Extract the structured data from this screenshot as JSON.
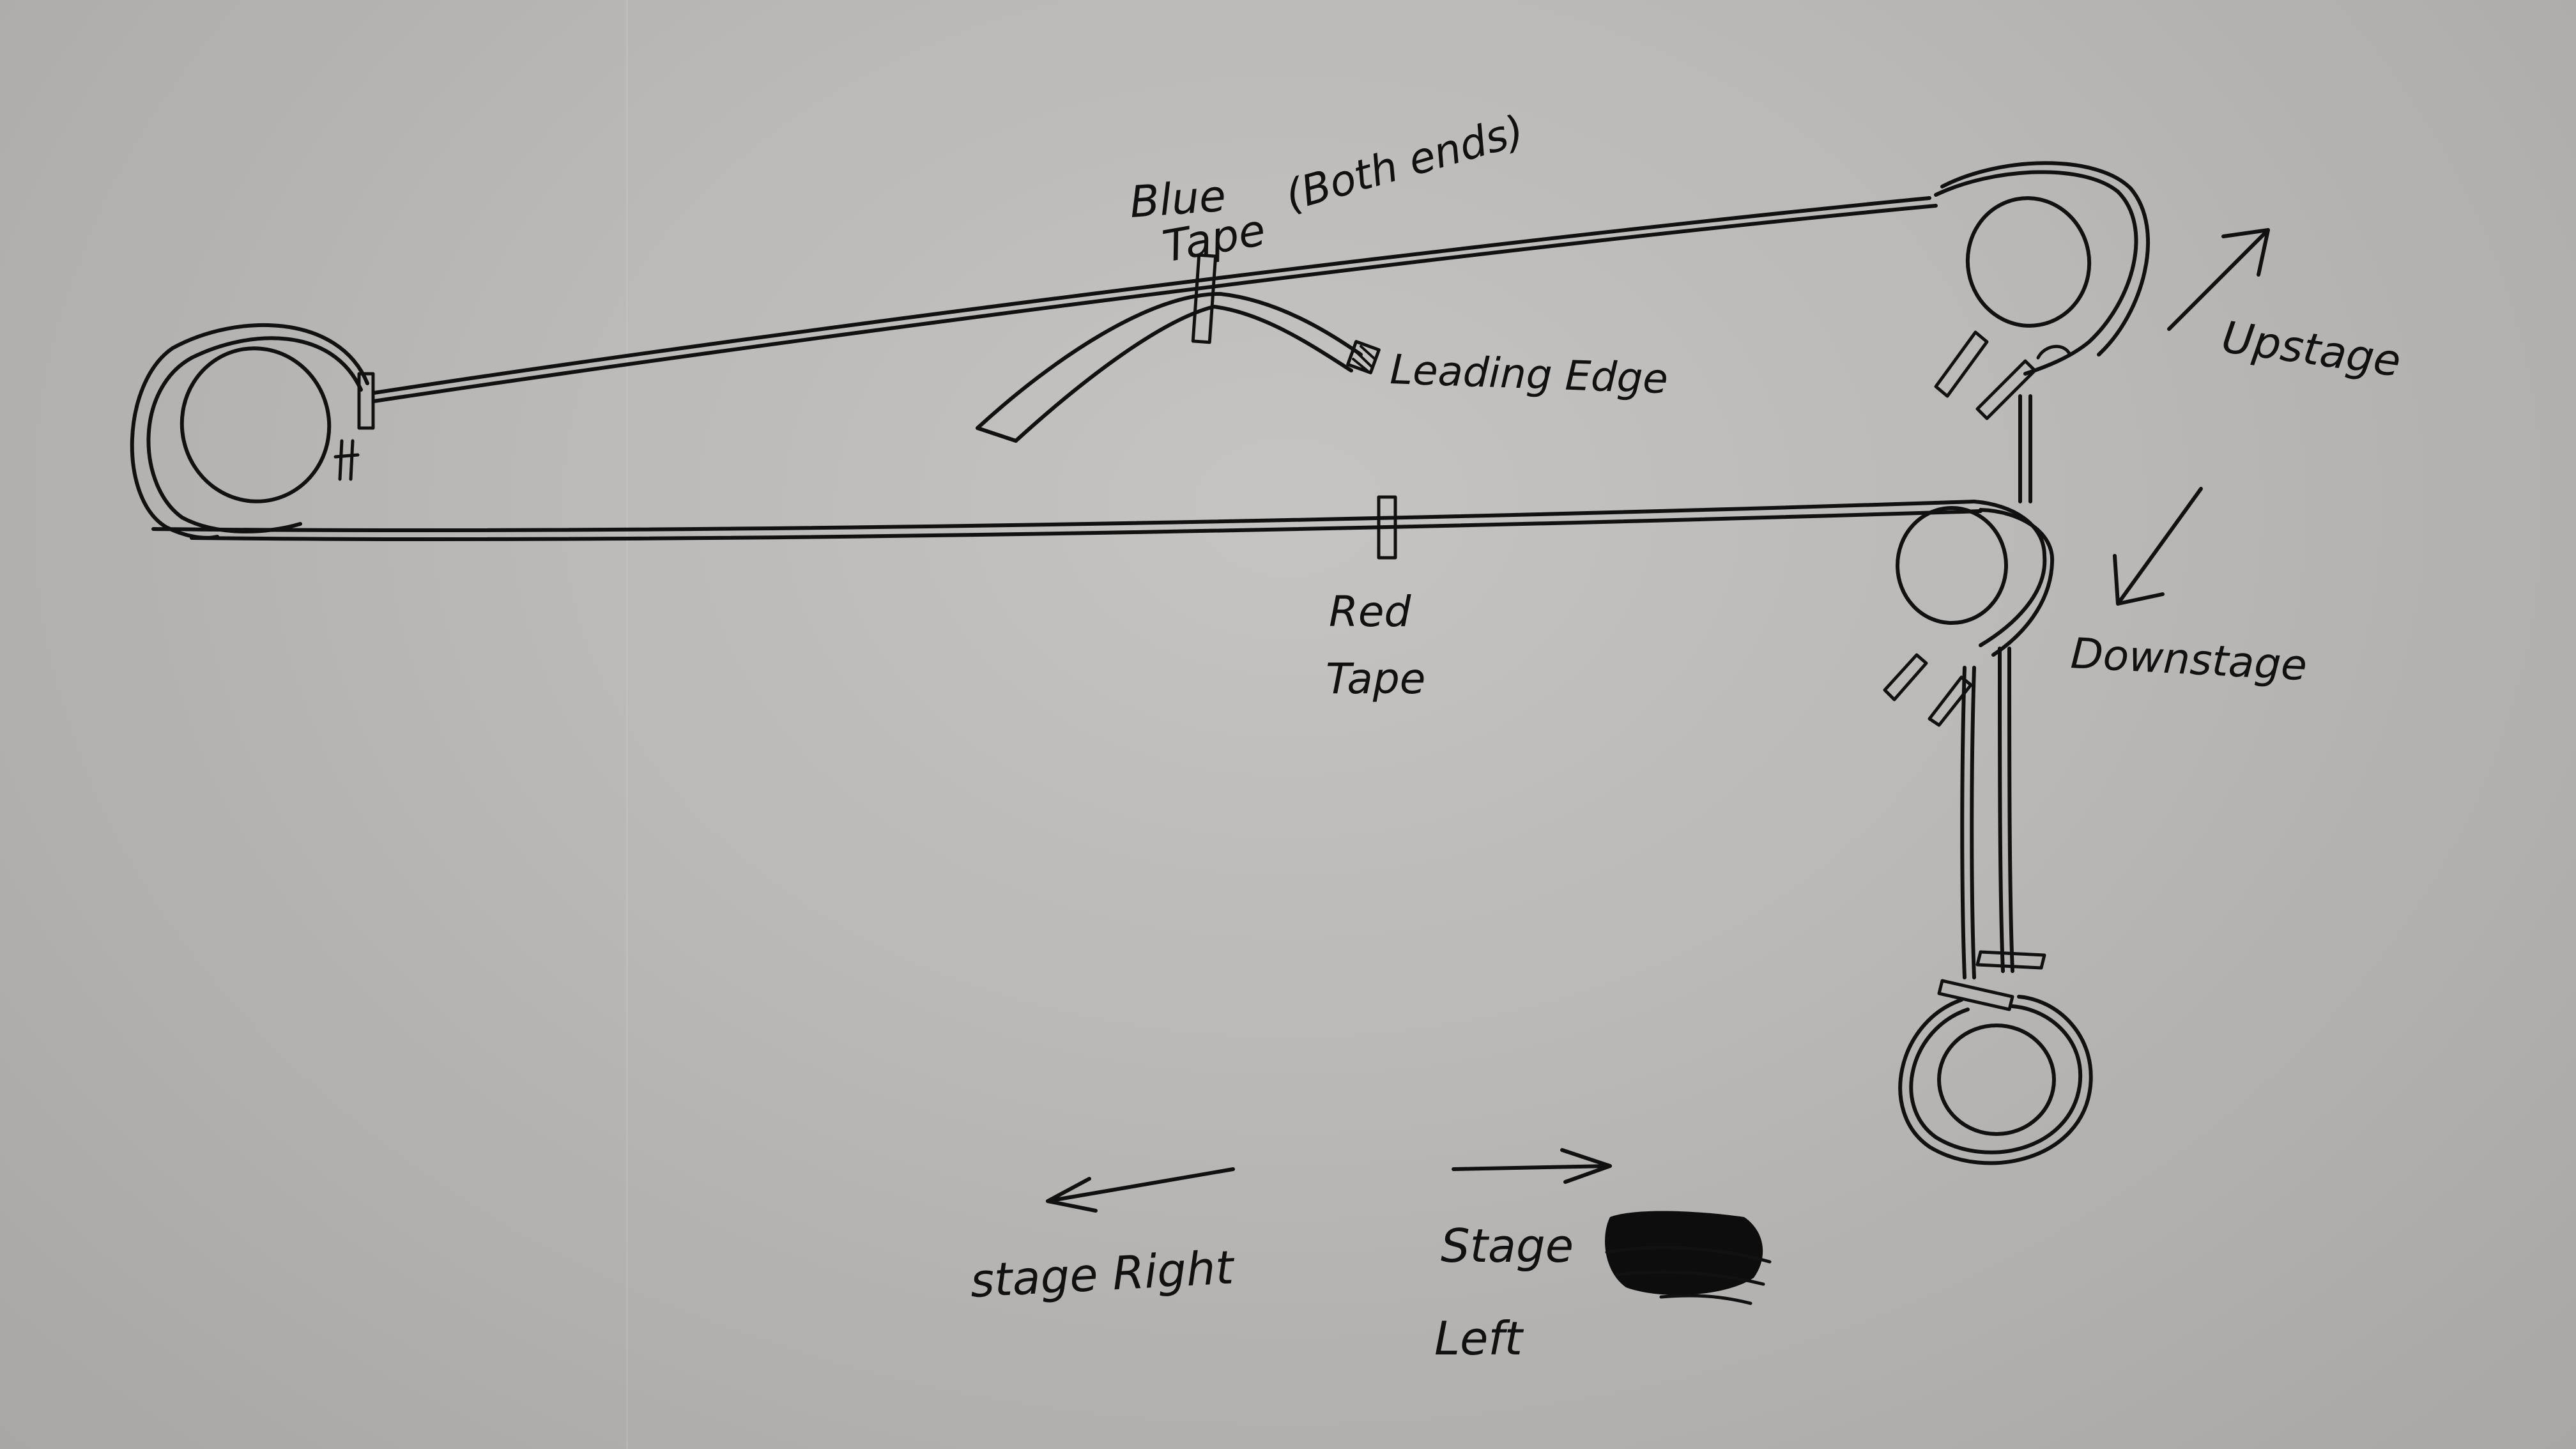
{
  "labels": {
    "blue_tape": "Blue",
    "blue_tape_line2": "Tape",
    "blue_tape_note": "(Both ends)",
    "leading_edge": "Leading Edge",
    "upstage": "Upstage",
    "downstage": "Downstage",
    "red_tape": "Red",
    "red_tape_line2": "Tape",
    "stage_right": "stage Right",
    "stage_left": "Stage",
    "stage_left_line2": "Left"
  },
  "colors": {
    "ink": "#111111",
    "paper": "#bfbdbb"
  }
}
